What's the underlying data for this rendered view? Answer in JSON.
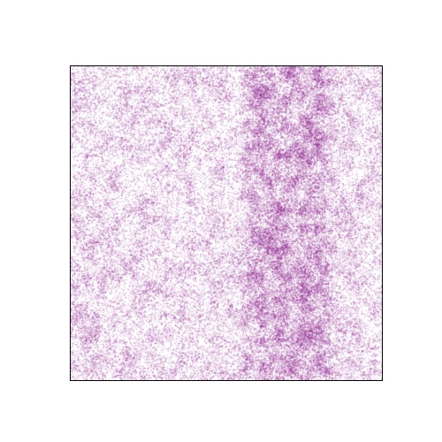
{
  "chart_data": {
    "type": "scatter",
    "title": "",
    "xlabel": "",
    "ylabel": "",
    "xlim": [
      0,
      1
    ],
    "ylim": [
      0,
      1
    ],
    "grid": false,
    "legend": "none",
    "axis_ticks": "hidden",
    "marker_color": "#800080",
    "marker_alpha": 0.3,
    "point_density": {
      "background": {
        "x_range": [
          0,
          1
        ],
        "relative_density": 1.0
      },
      "dense_band": {
        "x_range": [
          0.57,
          0.84
        ],
        "relative_density": 2.6
      },
      "dense_cluster": {
        "x_range": [
          0.0,
          0.09
        ],
        "y_range": [
          0.1,
          0.25
        ],
        "relative_density": 1.5
      }
    }
  }
}
